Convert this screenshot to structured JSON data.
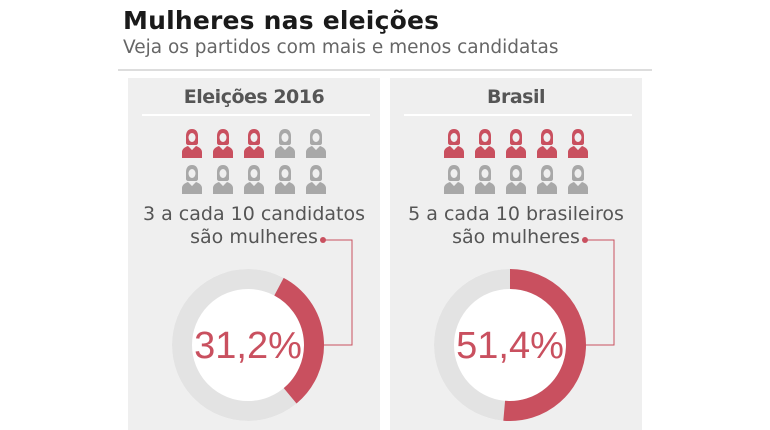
{
  "header": {
    "title": "Mulheres nas eleições",
    "subtitle": "Veja os partidos com mais e menos candidatas"
  },
  "colors": {
    "accent": "#c9505f",
    "icon_gray": "#a8a8a8",
    "ring_gray": "#e3e3e3",
    "panel_bg": "#efefef"
  },
  "chart_data": [
    {
      "type": "pie",
      "title": "Eleições 2016",
      "icon_filled": 3,
      "icon_total": 10,
      "caption_line1": "3 a cada 10 candidatos",
      "caption_line2": "são mulheres",
      "value": 31.2,
      "label": "31,2%"
    },
    {
      "type": "pie",
      "title": "Brasil",
      "icon_filled": 5,
      "icon_total": 10,
      "caption_line1": "5 a cada 10 brasileiros",
      "caption_line2": "são mulheres",
      "value": 51.4,
      "label": "51,4%"
    }
  ]
}
